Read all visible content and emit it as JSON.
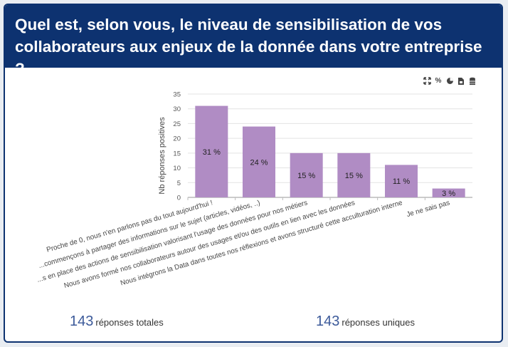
{
  "header": {
    "title_line1": "Quel est, selon vous, le niveau de sensibilisation de vos",
    "title_line2": "collaborateurs aux enjeux de la donnée dans votre entreprise ?"
  },
  "toolbar": {
    "icons": [
      "expand-icon",
      "percent-icon",
      "pie-chart-icon",
      "export-icon",
      "database-icon"
    ]
  },
  "chart_data": {
    "type": "bar",
    "ylabel": "Nb réponses positives",
    "xlabel": "",
    "ylim": [
      0,
      35
    ],
    "yticks": [
      0,
      5,
      10,
      15,
      20,
      25,
      30,
      35
    ],
    "categories": [
      "Proche de 0, nous n'en parlons pas du tout aujourd'hui !",
      "...commençons à partager des informations sur le sujet (articles, vidéos, ..)",
      "...s en place des actions de sensibilisation valorisant l'usage des données pour nos métiers",
      "Nous avons  formé nos collaborateurs autour des usages et/ou des outils en lien avec les données",
      "Nous intégrons la Data dans toutes nos réflexions et avons structuré cette acculturation interne",
      "Je ne sais pas"
    ],
    "values": [
      31,
      24,
      15,
      15,
      11,
      3
    ],
    "data_labels": [
      "31 %",
      "24 %",
      "15 %",
      "15 %",
      "11 %",
      "3 %"
    ],
    "bar_color": "#b08cc4",
    "grid": true
  },
  "footer": {
    "total_count": "143",
    "total_label": "réponses totales",
    "unique_count": "143",
    "unique_label": "réponses uniques"
  }
}
